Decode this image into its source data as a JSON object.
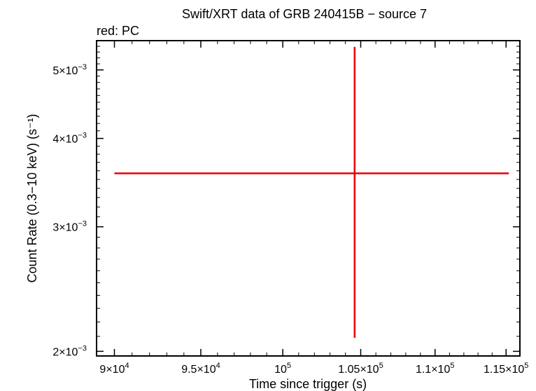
{
  "chart_data": {
    "type": "scatter",
    "title": "Swift/XRT data of GRB 240415B − source 7",
    "subtitle": "red: PC",
    "xlabel": "Time since trigger (s)",
    "ylabel": "Count Rate (0.3−10 keV) (s⁻¹)",
    "x_scale": "log",
    "y_scale": "log",
    "xlim": [
      89000,
      116000
    ],
    "ylim": [
      0.00197,
      0.0055
    ],
    "x_ticks": [
      {
        "value": 90000,
        "mant": "9",
        "exp": "4"
      },
      {
        "value": 95000,
        "mant": "9.5",
        "exp": "4"
      },
      {
        "value": 100000,
        "mant": "",
        "exp": "5"
      },
      {
        "value": 105000,
        "mant": "1.05",
        "exp": "5"
      },
      {
        "value": 110000,
        "mant": "1.1",
        "exp": "5"
      },
      {
        "value": 115000,
        "mant": "1.15",
        "exp": "5"
      }
    ],
    "y_ticks": [
      {
        "value": 0.002,
        "mant": "2",
        "exp": "−3"
      },
      {
        "value": 0.003,
        "mant": "3",
        "exp": "−3"
      },
      {
        "value": 0.004,
        "mant": "4",
        "exp": "−3"
      },
      {
        "value": 0.005,
        "mant": "5",
        "exp": "−3"
      }
    ],
    "grid": false,
    "series": [
      {
        "name": "PC",
        "color": "#e8000b",
        "points": [
          {
            "x": 104600,
            "x_low": 90000,
            "x_high": 115200,
            "y": 0.00357,
            "y_low": 0.00209,
            "y_high": 0.00539
          }
        ]
      }
    ]
  }
}
